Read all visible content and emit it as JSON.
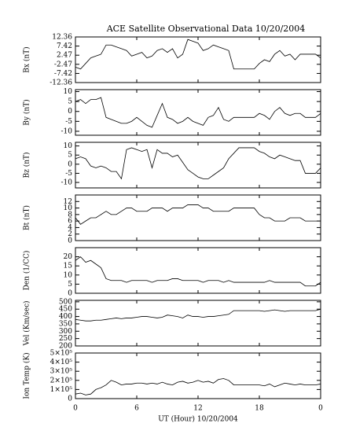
{
  "chart_data": [
    {
      "type": "line",
      "title": "ACE Satellite Observational Data  10/20/2004",
      "ylabel": "Bx (nT)",
      "color": "#000000",
      "xlim": [
        0,
        24
      ],
      "ylim": [
        -12.36,
        12.36
      ],
      "yticks": [
        12.36,
        7.42,
        2.47,
        -2.47,
        -7.42,
        -12.36
      ],
      "x": [
        0,
        0.5,
        1,
        1.5,
        2,
        2.5,
        3,
        3.5,
        4,
        4.5,
        5,
        5.5,
        6,
        6.5,
        7,
        7.5,
        8,
        8.5,
        9,
        9.5,
        10,
        10.5,
        11,
        11.5,
        12,
        12.5,
        13,
        13.5,
        14,
        14.5,
        15,
        15.5,
        16,
        16.5,
        17,
        17.5,
        18,
        18.5,
        19,
        19.5,
        20,
        20.5,
        21,
        21.5,
        22,
        22.5,
        23,
        23.5,
        24
      ],
      "values": [
        -4,
        -5,
        -2,
        1,
        2,
        3,
        8,
        8,
        7,
        6,
        5,
        2,
        3,
        4,
        1,
        2,
        5,
        6,
        4,
        6,
        1,
        3,
        11,
        10,
        9,
        5,
        6,
        8,
        7,
        6,
        5,
        -5,
        -5,
        -5,
        -5,
        -5,
        -2,
        0,
        -1,
        3,
        5,
        2,
        3,
        0,
        3,
        3,
        3,
        3,
        1
      ]
    },
    {
      "type": "line",
      "ylabel": "By (nT)",
      "color": "#000000",
      "xlim": [
        0,
        24
      ],
      "ylim": [
        -12,
        11
      ],
      "yticks": [
        10,
        5,
        0,
        -5,
        -10
      ],
      "x": [
        0,
        0.5,
        1,
        1.5,
        2,
        2.5,
        3,
        3.5,
        4,
        4.5,
        5,
        5.5,
        6,
        6.5,
        7,
        7.5,
        8,
        8.5,
        9,
        9.5,
        10,
        10.5,
        11,
        11.5,
        12,
        12.5,
        13,
        13.5,
        14,
        14.5,
        15,
        15.5,
        16,
        16.5,
        17,
        17.5,
        18,
        18.5,
        19,
        19.5,
        20,
        20.5,
        21,
        21.5,
        22,
        22.5,
        23,
        23.5,
        24
      ],
      "values": [
        5,
        6,
        4,
        6,
        6,
        7,
        -3,
        -4,
        -5,
        -6,
        -6,
        -5,
        -3,
        -5,
        -7,
        -8,
        -2,
        4,
        -3,
        -4,
        -6,
        -5,
        -3,
        -5,
        -6,
        -7,
        -3,
        -2,
        2,
        -4,
        -5,
        -3,
        -3,
        -3,
        -3,
        -3,
        -1,
        -2,
        -4,
        0,
        2,
        -1,
        -2,
        -1,
        -1,
        -3,
        -3,
        -3,
        -1
      ]
    },
    {
      "type": "line",
      "ylabel": "Bz (nT)",
      "color": "#000000",
      "xlim": [
        0,
        24
      ],
      "ylim": [
        -13,
        12
      ],
      "yticks": [
        10,
        5,
        0,
        -5,
        -10
      ],
      "x": [
        0,
        0.5,
        1,
        1.5,
        2,
        2.5,
        3,
        3.5,
        4,
        4.5,
        5,
        5.5,
        6,
        6.5,
        7,
        7.5,
        8,
        8.5,
        9,
        9.5,
        10,
        10.5,
        11,
        11.5,
        12,
        12.5,
        13,
        13.5,
        14,
        14.5,
        15,
        15.5,
        16,
        16.5,
        17,
        17.5,
        18,
        18.5,
        19,
        19.5,
        20,
        20.5,
        21,
        21.5,
        22,
        22.5,
        23,
        23.5,
        24
      ],
      "values": [
        3,
        4,
        3,
        -1,
        -2,
        -1,
        -2,
        -4,
        -4,
        -8,
        8,
        9,
        8,
        7,
        8,
        -2,
        8,
        6,
        6,
        4,
        5,
        1,
        -3,
        -5,
        -7,
        -8,
        -8,
        -6,
        -4,
        -2,
        3,
        6,
        9,
        9,
        9,
        9,
        7,
        6,
        4,
        3,
        5,
        4,
        3,
        2,
        2,
        -5,
        -5,
        -5,
        -2
      ]
    },
    {
      "type": "line",
      "ylabel": "Bt (nT)",
      "color": "#000000",
      "xlim": [
        0,
        24
      ],
      "ylim": [
        0,
        14
      ],
      "yticks": [
        0,
        2,
        4,
        6,
        8,
        10,
        12
      ],
      "x": [
        0,
        0.5,
        1,
        1.5,
        2,
        2.5,
        3,
        3.5,
        4,
        4.5,
        5,
        5.5,
        6,
        6.5,
        7,
        7.5,
        8,
        8.5,
        9,
        9.5,
        10,
        10.5,
        11,
        11.5,
        12,
        12.5,
        13,
        13.5,
        14,
        14.5,
        15,
        15.5,
        16,
        16.5,
        17,
        17.5,
        18,
        18.5,
        19,
        19.5,
        20,
        20.5,
        21,
        21.5,
        22,
        22.5,
        23,
        23.5,
        24
      ],
      "values": [
        7,
        5,
        6,
        7,
        7,
        8,
        9,
        8,
        8,
        9,
        10,
        10,
        9,
        9,
        9,
        10,
        10,
        10,
        9,
        10,
        10,
        10,
        11,
        11,
        11,
        10,
        10,
        9,
        9,
        9,
        9,
        10,
        10,
        10,
        10,
        10,
        8,
        7,
        7,
        6,
        6,
        6,
        7,
        7,
        7,
        6,
        6,
        6,
        6
      ]
    },
    {
      "type": "line",
      "ylabel": "Den (1/CC)",
      "color": "#000000",
      "xlim": [
        0,
        24
      ],
      "ylim": [
        0,
        25
      ],
      "yticks": [
        0,
        5,
        10,
        15,
        20
      ],
      "x": [
        0,
        0.5,
        1,
        1.5,
        2,
        2.5,
        3,
        3.5,
        4,
        4.5,
        5,
        5.5,
        6,
        6.5,
        7,
        7.5,
        8,
        8.5,
        9,
        9.5,
        10,
        10.5,
        11,
        11.5,
        12,
        12.5,
        13,
        13.5,
        14,
        14.5,
        15,
        15.5,
        16,
        16.5,
        17,
        17.5,
        18,
        18.5,
        19,
        19.5,
        20,
        20.5,
        21,
        21.5,
        22,
        22.5,
        23,
        23.5,
        24
      ],
      "values": [
        18,
        20,
        17,
        18,
        16,
        14,
        8,
        7,
        7,
        7,
        6,
        7,
        7,
        7,
        7,
        6,
        7,
        7,
        7,
        8,
        8,
        7,
        7,
        7,
        7,
        6,
        7,
        7,
        7,
        6,
        7,
        6,
        6,
        6,
        6,
        6,
        6,
        6,
        7,
        6,
        6,
        6,
        6,
        6,
        6,
        4,
        4,
        4,
        6
      ]
    },
    {
      "type": "line",
      "ylabel": "Vel (Km/sec)",
      "color": "#000000",
      "xlim": [
        0,
        24
      ],
      "ylim": [
        200,
        510
      ],
      "yticks": [
        200,
        250,
        300,
        350,
        400,
        450,
        500
      ],
      "x": [
        0,
        0.5,
        1,
        1.5,
        2,
        2.5,
        3,
        3.5,
        4,
        4.5,
        5,
        5.5,
        6,
        6.5,
        7,
        7.5,
        8,
        8.5,
        9,
        9.5,
        10,
        10.5,
        11,
        11.5,
        12,
        12.5,
        13,
        13.5,
        14,
        14.5,
        15,
        15.5,
        16,
        16.5,
        17,
        17.5,
        18,
        18.5,
        19,
        19.5,
        20,
        20.5,
        21,
        21.5,
        22,
        22.5,
        23,
        23.5,
        24
      ],
      "values": [
        380,
        375,
        370,
        370,
        375,
        375,
        380,
        385,
        390,
        385,
        390,
        390,
        395,
        400,
        400,
        395,
        390,
        395,
        410,
        405,
        400,
        390,
        410,
        400,
        400,
        395,
        400,
        400,
        405,
        410,
        415,
        440,
        440,
        440,
        440,
        440,
        440,
        435,
        440,
        445,
        440,
        435,
        440,
        440,
        440,
        440,
        440,
        440,
        450
      ]
    },
    {
      "type": "line",
      "ylabel": "Ion Temp (K)",
      "xlabel": "UT (Hour)  10/20/2004",
      "color": "#000000",
      "xlim": [
        0,
        24
      ],
      "xticks": [
        0,
        6,
        12,
        18,
        {
          "value": 24,
          "label": "0"
        }
      ],
      "ylim": [
        0,
        500000
      ],
      "yticks": [
        0,
        {
          "value": 100000,
          "label": "1×10⁵"
        },
        {
          "value": 200000,
          "label": "2×10⁵"
        },
        {
          "value": 300000,
          "label": "3×10⁵"
        },
        {
          "value": 400000,
          "label": "4×10⁵"
        },
        {
          "value": 500000,
          "label": "5×10⁵"
        }
      ],
      "x": [
        0,
        0.5,
        1,
        1.5,
        2,
        2.5,
        3,
        3.5,
        4,
        4.5,
        5,
        5.5,
        6,
        6.5,
        7,
        7.5,
        8,
        8.5,
        9,
        9.5,
        10,
        10.5,
        11,
        11.5,
        12,
        12.5,
        13,
        13.5,
        14,
        14.5,
        15,
        15.5,
        16,
        16.5,
        17,
        17.5,
        18,
        18.5,
        19,
        19.5,
        20,
        20.5,
        21,
        21.5,
        22,
        22.5,
        23,
        23.5,
        24
      ],
      "values": [
        50000,
        60000,
        40000,
        50000,
        100000,
        120000,
        150000,
        200000,
        180000,
        150000,
        160000,
        160000,
        170000,
        170000,
        160000,
        170000,
        160000,
        180000,
        160000,
        150000,
        180000,
        190000,
        170000,
        180000,
        200000,
        180000,
        190000,
        170000,
        210000,
        220000,
        200000,
        150000,
        150000,
        150000,
        150000,
        150000,
        150000,
        140000,
        160000,
        130000,
        150000,
        170000,
        160000,
        150000,
        160000,
        150000,
        150000,
        150000,
        160000
      ]
    }
  ]
}
